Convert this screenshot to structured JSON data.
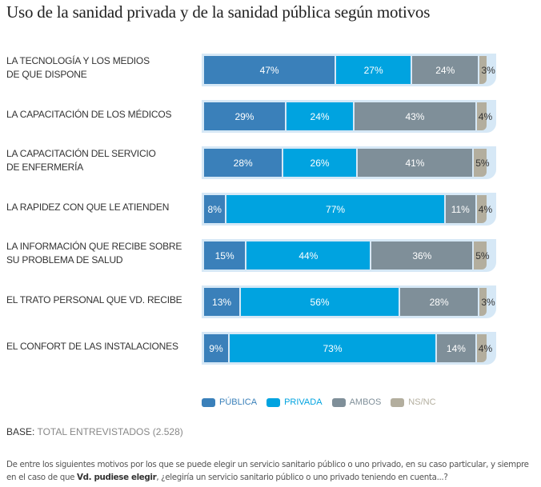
{
  "title": "Uso de la sanidad privada y de la sanidad pública según motivos",
  "chart_data": {
    "type": "bar",
    "orientation": "horizontal-stacked-100",
    "title": "Uso de la sanidad privada y de la sanidad pública según motivos",
    "categories": [
      [
        "LA TECNOLOGÍA Y LOS MEDIOS",
        "DE QUE DISPONE"
      ],
      [
        "LA CAPACITACIÓN DE LOS MÉDICOS"
      ],
      [
        "LA CAPACITACIÓN DEL SERVICIO",
        "DE ENFERMERÍA"
      ],
      [
        "LA RAPIDEZ CON QUE LE ATIENDEN"
      ],
      [
        "LA INFORMACIÓN QUE RECIBE SOBRE",
        "SU PROBLEMA DE SALUD"
      ],
      [
        "EL TRATO PERSONAL QUE VD. RECIBE"
      ],
      [
        "EL CONFORT DE LAS INSTALACIONES"
      ]
    ],
    "series": [
      {
        "name": "PÚBLICA",
        "color": "#3a80ba",
        "values": [
          47,
          29,
          28,
          8,
          15,
          13,
          9
        ]
      },
      {
        "name": "PRIVADA",
        "color": "#00a3e0",
        "values": [
          27,
          24,
          26,
          77,
          44,
          56,
          73
        ]
      },
      {
        "name": "AMBOS",
        "color": "#7f8f99",
        "values": [
          24,
          43,
          41,
          11,
          36,
          28,
          14
        ]
      },
      {
        "name": "NS/NC",
        "color": "#b3ae9e",
        "values": [
          3,
          4,
          5,
          4,
          5,
          3,
          4
        ]
      }
    ],
    "value_suffix": "%",
    "xlim": [
      0,
      100
    ],
    "legend_position": "bottom",
    "grid": false,
    "xlabel": "",
    "ylabel": ""
  },
  "legend_label_colors": [
    "#3a80ba",
    "#00a3e0",
    "#7f8f99",
    "#b3ae9e"
  ],
  "bar_background": "#d6e8f6",
  "base": {
    "label": "BASE:",
    "value": "TOTAL ENTREVISTADOS (2.528)"
  },
  "footnote": {
    "part1": "De entre los siguientes motivos por los que se puede elegir un servicio sanitario público o uno privado, en su caso particular, y siempre en el caso de que ",
    "bold": "Vd. pudiese elegir",
    "part2": ", ¿elegiría un servicio sanitario público o uno privado teniendo en cuenta...?"
  }
}
